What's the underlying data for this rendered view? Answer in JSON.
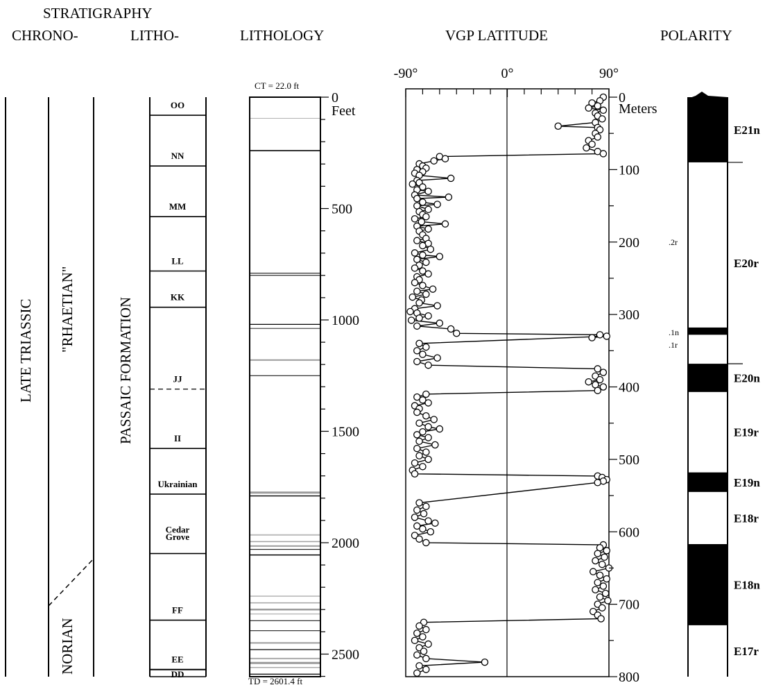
{
  "headers": {
    "stratigraphy": "STRATIGRAPHY",
    "chrono": "CHRONO-",
    "litho": "LITHO-",
    "lithology": "LITHOLOGY",
    "vgp": "VGP LATITUDE",
    "polarity": "POLARITY"
  },
  "chrono": {
    "late_triassic": "LATE TRIASSIC",
    "rhaetian": "\"RHAETIAN\"",
    "norian": "NORIAN"
  },
  "formation": "PASSAIC FORMATION",
  "members": [
    {
      "name": "OO",
      "top_m": 0,
      "base_m": 25
    },
    {
      "name": "NN",
      "top_m": 25,
      "base_m": 95
    },
    {
      "name": "MM",
      "top_m": 95,
      "base_m": 165
    },
    {
      "name": "LL",
      "top_m": 165,
      "base_m": 240
    },
    {
      "name": "KK",
      "top_m": 240,
      "base_m": 290
    },
    {
      "name": "JJ",
      "top_m": 290,
      "base_m": 403
    },
    {
      "name": "II",
      "top_m": 403,
      "base_m": 485
    },
    {
      "name": "Ukrainian",
      "top_m": 485,
      "base_m": 548
    },
    {
      "name": "Cedar",
      "top_m": 548,
      "base_m": 630
    },
    {
      "name": "FF",
      "top_m": 630,
      "base_m": 722
    },
    {
      "name": "EE",
      "top_m": 722,
      "base_m": 790
    },
    {
      "name": "DD",
      "top_m": 790,
      "base_m": 800
    }
  ],
  "member_grove": "Grove",
  "lithology": {
    "ct": "CT = 22.0 ft",
    "td": "TD = 2601.4 ft",
    "feet_unit": "Feet",
    "feet_ticks": [
      "0",
      "500",
      "1000",
      "1500",
      "2000",
      "2500"
    ]
  },
  "meters": {
    "unit": "Meters",
    "ticks": [
      "0",
      "100",
      "200",
      "300",
      "400",
      "500",
      "600",
      "700",
      "800"
    ]
  },
  "chart_data": {
    "type": "line",
    "title": "VGP LATITUDE",
    "xlabel": "",
    "ylabel": "Meters",
    "xlim": [
      -90,
      90
    ],
    "ylim": [
      0,
      800
    ],
    "xticks": [
      "-90°",
      "0°",
      "90°"
    ],
    "y_reversed": true,
    "series": [
      {
        "points": [
          [
            85,
            0
          ],
          [
            82,
            5
          ],
          [
            75,
            8
          ],
          [
            80,
            12
          ],
          [
            72,
            15
          ],
          [
            85,
            18
          ],
          [
            78,
            22
          ],
          [
            80,
            26
          ],
          [
            84,
            30
          ],
          [
            78,
            35
          ],
          [
            45,
            40
          ],
          [
            80,
            42
          ],
          [
            82,
            45
          ],
          [
            78,
            50
          ],
          [
            80,
            55
          ],
          [
            72,
            60
          ],
          [
            75,
            65
          ],
          [
            70,
            70
          ],
          [
            80,
            75
          ],
          [
            85,
            78
          ],
          [
            -60,
            82
          ],
          [
            -55,
            85
          ],
          [
            -65,
            88
          ],
          [
            -78,
            92
          ],
          [
            -75,
            95
          ],
          [
            -72,
            98
          ],
          [
            -80,
            100
          ],
          [
            -75,
            103
          ],
          [
            -82,
            105
          ],
          [
            -78,
            108
          ],
          [
            -50,
            112
          ],
          [
            -80,
            115
          ],
          [
            -78,
            118
          ],
          [
            -84,
            120
          ],
          [
            -75,
            124
          ],
          [
            -80,
            128
          ],
          [
            -70,
            130
          ],
          [
            -82,
            135
          ],
          [
            -52,
            138
          ],
          [
            -80,
            140
          ],
          [
            -75,
            145
          ],
          [
            -62,
            148
          ],
          [
            -80,
            150
          ],
          [
            -70,
            155
          ],
          [
            -78,
            158
          ],
          [
            -75,
            162
          ],
          [
            -72,
            165
          ],
          [
            -82,
            168
          ],
          [
            -76,
            172
          ],
          [
            -55,
            175
          ],
          [
            -80,
            178
          ],
          [
            -70,
            182
          ],
          [
            -78,
            185
          ],
          [
            -75,
            190
          ],
          [
            -72,
            195
          ],
          [
            -80,
            198
          ],
          [
            -70,
            202
          ],
          [
            -75,
            205
          ],
          [
            -68,
            210
          ],
          [
            -82,
            215
          ],
          [
            -75,
            218
          ],
          [
            -60,
            220
          ],
          [
            -80,
            224
          ],
          [
            -72,
            228
          ],
          [
            -78,
            232
          ],
          [
            -82,
            236
          ],
          [
            -75,
            240
          ],
          [
            -70,
            244
          ],
          [
            -80,
            248
          ],
          [
            -78,
            252
          ],
          [
            -82,
            256
          ],
          [
            -75,
            260
          ],
          [
            -66,
            265
          ],
          [
            -80,
            268
          ],
          [
            -72,
            272
          ],
          [
            -84,
            276
          ],
          [
            -76,
            280
          ],
          [
            -78,
            284
          ],
          [
            -62,
            288
          ],
          [
            -82,
            292
          ],
          [
            -86,
            296
          ],
          [
            -80,
            298
          ],
          [
            -70,
            302
          ],
          [
            -78,
            305
          ],
          [
            -85,
            308
          ],
          [
            -60,
            312
          ],
          [
            -80,
            316
          ],
          [
            -50,
            320
          ],
          [
            -45,
            326
          ],
          [
            82,
            328
          ],
          [
            75,
            332
          ],
          [
            88,
            330
          ],
          [
            -78,
            340
          ],
          [
            -72,
            345
          ],
          [
            -80,
            350
          ],
          [
            -75,
            355
          ],
          [
            -62,
            360
          ],
          [
            -80,
            365
          ],
          [
            -70,
            370
          ],
          [
            80,
            375
          ],
          [
            85,
            380
          ],
          [
            78,
            385
          ],
          [
            82,
            390
          ],
          [
            72,
            393
          ],
          [
            78,
            397
          ],
          [
            85,
            400
          ],
          [
            80,
            405
          ],
          [
            -72,
            410
          ],
          [
            -80,
            414
          ],
          [
            -75,
            418
          ],
          [
            -70,
            422
          ],
          [
            -82,
            426
          ],
          [
            -78,
            430
          ],
          [
            -80,
            435
          ],
          [
            -72,
            440
          ],
          [
            -65,
            445
          ],
          [
            -78,
            450
          ],
          [
            -70,
            455
          ],
          [
            -60,
            458
          ],
          [
            -75,
            462
          ],
          [
            -80,
            466
          ],
          [
            -70,
            470
          ],
          [
            -78,
            475
          ],
          [
            -64,
            480
          ],
          [
            -80,
            485
          ],
          [
            -72,
            490
          ],
          [
            -78,
            495
          ],
          [
            -70,
            500
          ],
          [
            -82,
            505
          ],
          [
            -75,
            510
          ],
          [
            -84,
            515
          ],
          [
            -82,
            520
          ],
          [
            80,
            523
          ],
          [
            84,
            525
          ],
          [
            88,
            528
          ],
          [
            85,
            530
          ],
          [
            80,
            532
          ],
          [
            -78,
            560
          ],
          [
            -72,
            565
          ],
          [
            -80,
            570
          ],
          [
            -74,
            575
          ],
          [
            -82,
            580
          ],
          [
            -70,
            585
          ],
          [
            -64,
            588
          ],
          [
            -80,
            592
          ],
          [
            -75,
            596
          ],
          [
            -68,
            600
          ],
          [
            -82,
            605
          ],
          [
            -78,
            610
          ],
          [
            -72,
            615
          ],
          [
            85,
            618
          ],
          [
            82,
            622
          ],
          [
            88,
            626
          ],
          [
            80,
            630
          ],
          [
            86,
            635
          ],
          [
            78,
            640
          ],
          [
            84,
            645
          ],
          [
            90,
            650
          ],
          [
            76,
            655
          ],
          [
            82,
            660
          ],
          [
            88,
            665
          ],
          [
            80,
            670
          ],
          [
            85,
            675
          ],
          [
            78,
            680
          ],
          [
            87,
            685
          ],
          [
            82,
            690
          ],
          [
            89,
            695
          ],
          [
            80,
            700
          ],
          [
            84,
            705
          ],
          [
            76,
            710
          ],
          [
            80,
            715
          ],
          [
            83,
            720
          ],
          [
            -74,
            725
          ],
          [
            -78,
            730
          ],
          [
            -72,
            735
          ],
          [
            -80,
            740
          ],
          [
            -75,
            745
          ],
          [
            -82,
            750
          ],
          [
            -70,
            755
          ],
          [
            -78,
            760
          ],
          [
            -74,
            765
          ],
          [
            -80,
            770
          ],
          [
            -72,
            775
          ],
          [
            -20,
            780
          ],
          [
            -78,
            785
          ],
          [
            -72,
            790
          ],
          [
            -80,
            795
          ]
        ]
      }
    ]
  },
  "polarity": {
    "zones": [
      {
        "name": "E21n",
        "top_m": 0,
        "base_m": 90,
        "normal": true
      },
      {
        "name": "E20r",
        "top_m": 90,
        "base_m": 368,
        "normal": false
      },
      {
        "name": "E20n",
        "top_m": 368,
        "base_m": 407,
        "normal": true
      },
      {
        "name": "E19r",
        "top_m": 407,
        "base_m": 518,
        "normal": false
      },
      {
        "name": "E19n",
        "top_m": 518,
        "base_m": 545,
        "normal": true
      },
      {
        "name": "E18r",
        "top_m": 545,
        "base_m": 617,
        "normal": false
      },
      {
        "name": "E18n",
        "top_m": 617,
        "base_m": 729,
        "normal": true
      },
      {
        "name": "E17r",
        "top_m": 729,
        "base_m": 800,
        "normal": false
      }
    ],
    "subzones": [
      {
        "name": ".2r",
        "m": 200
      },
      {
        "name": ".1n",
        "m": 325
      },
      {
        "name": ".1r",
        "m": 342
      }
    ],
    "n_band": {
      "top_m": 318,
      "base_m": 328
    }
  },
  "colors": {
    "ink": "#000000",
    "paper": "#ffffff",
    "hatch": "#9a9a9a"
  }
}
